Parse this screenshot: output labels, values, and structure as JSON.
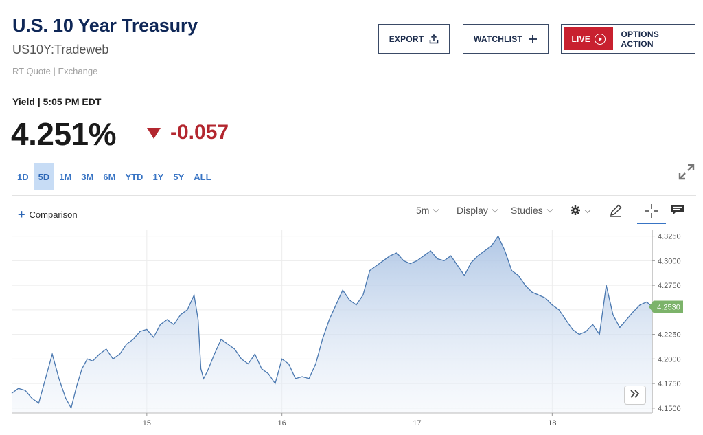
{
  "header": {
    "title": "U.S. 10 Year Treasury",
    "symbol": "US10Y:Tradeweb",
    "source": "RT Quote | Exchange"
  },
  "buttons": {
    "export": "EXPORT",
    "watchlist": "WATCHLIST",
    "live": "LIVE",
    "options_action": "OPTIONS ACTION"
  },
  "quote": {
    "label": "Yield | 5:05 PM EDT",
    "price": "4.251%",
    "change": "-0.057",
    "direction": "down"
  },
  "colors": {
    "title": "#0f2757",
    "accent": "#3874c4",
    "negative": "#b3272f",
    "live": "#c8202f",
    "line": "#4a78b0",
    "last_price_tag": "#7cb36a"
  },
  "ranges": [
    {
      "label": "1D",
      "active": false
    },
    {
      "label": "5D",
      "active": true
    },
    {
      "label": "1M",
      "active": false
    },
    {
      "label": "3M",
      "active": false
    },
    {
      "label": "6M",
      "active": false
    },
    {
      "label": "YTD",
      "active": false
    },
    {
      "label": "1Y",
      "active": false
    },
    {
      "label": "5Y",
      "active": false
    },
    {
      "label": "ALL",
      "active": false
    }
  ],
  "toolbar": {
    "comparison": "Comparison",
    "interval": "5m",
    "display": "Display",
    "studies": "Studies",
    "icons": [
      "gear-icon",
      "pencil-icon",
      "crosshair-icon",
      "comment-icon",
      "expand-icon",
      "fast-forward-icon"
    ]
  },
  "chart_data": {
    "type": "area",
    "title": "",
    "xlabel": "",
    "ylabel": "",
    "x_ticks": [
      "15",
      "16",
      "17",
      "18"
    ],
    "y_ticks": [
      "4.3250",
      "4.3000",
      "4.2750",
      "4.2500",
      "4.2250",
      "4.2000",
      "4.1750",
      "4.1500"
    ],
    "ylim": [
      4.145,
      4.331
    ],
    "grid": true,
    "last_value_label": "4.2530",
    "series": [
      {
        "x": [
          14.0,
          14.05,
          14.1,
          14.15,
          14.2,
          14.25,
          14.3,
          14.35,
          14.4,
          14.44,
          14.48,
          14.52,
          14.56,
          14.6,
          14.65,
          14.7,
          14.75,
          14.8,
          14.85,
          14.9,
          14.95,
          15.0,
          15.05,
          15.1,
          15.15,
          15.2,
          15.25,
          15.3,
          15.35,
          15.38,
          15.4,
          15.42,
          15.45,
          15.5,
          15.55,
          15.6,
          15.65,
          15.7,
          15.75,
          15.8,
          15.85,
          15.9,
          15.95,
          16.0,
          16.05,
          16.1,
          16.15,
          16.2,
          16.25,
          16.3,
          16.35,
          16.4,
          16.45,
          16.5,
          16.55,
          16.6,
          16.65,
          16.7,
          16.75,
          16.8,
          16.85,
          16.9,
          16.95,
          17.0,
          17.05,
          17.1,
          17.15,
          17.2,
          17.25,
          17.3,
          17.35,
          17.4,
          17.45,
          17.5,
          17.55,
          17.6,
          17.65,
          17.7,
          17.75,
          17.8,
          17.85,
          17.9,
          17.95,
          18.0,
          18.05,
          18.1,
          18.15,
          18.2,
          18.25,
          18.3,
          18.35,
          18.4,
          18.45,
          18.5,
          18.55,
          18.6,
          18.65,
          18.7,
          18.74
        ],
        "values": [
          4.165,
          4.17,
          4.168,
          4.16,
          4.155,
          4.18,
          4.205,
          4.18,
          4.16,
          4.15,
          4.172,
          4.19,
          4.2,
          4.198,
          4.205,
          4.21,
          4.2,
          4.205,
          4.215,
          4.22,
          4.228,
          4.23,
          4.222,
          4.235,
          4.24,
          4.235,
          4.245,
          4.25,
          4.265,
          4.24,
          4.19,
          4.18,
          4.188,
          4.205,
          4.22,
          4.215,
          4.21,
          4.2,
          4.195,
          4.205,
          4.19,
          4.185,
          4.175,
          4.2,
          4.195,
          4.18,
          4.182,
          4.18,
          4.195,
          4.22,
          4.24,
          4.255,
          4.27,
          4.26,
          4.255,
          4.265,
          4.29,
          4.295,
          4.3,
          4.305,
          4.308,
          4.3,
          4.297,
          4.3,
          4.305,
          4.31,
          4.302,
          4.3,
          4.305,
          4.295,
          4.285,
          4.298,
          4.305,
          4.31,
          4.315,
          4.325,
          4.31,
          4.29,
          4.285,
          4.275,
          4.268,
          4.265,
          4.262,
          4.255,
          4.25,
          4.24,
          4.23,
          4.225,
          4.228,
          4.235,
          4.225,
          4.275,
          4.245,
          4.232,
          4.24,
          4.248,
          4.255,
          4.258,
          4.253
        ]
      }
    ]
  }
}
